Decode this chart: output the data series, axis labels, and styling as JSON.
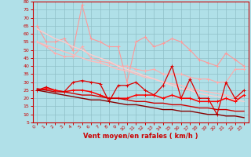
{
  "x": [
    0,
    1,
    2,
    3,
    4,
    5,
    6,
    7,
    8,
    9,
    10,
    11,
    12,
    13,
    14,
    15,
    16,
    17,
    18,
    19,
    20,
    21,
    22,
    23
  ],
  "series": [
    {
      "name": "max_gust_light",
      "color": "#ff9999",
      "linewidth": 0.8,
      "marker": "+",
      "markersize": 3,
      "markeredgewidth": 0.7,
      "y": [
        65,
        55,
        55,
        57,
        50,
        78,
        57,
        55,
        52,
        52,
        30,
        55,
        58,
        52,
        54,
        57,
        55,
        50,
        44,
        42,
        40,
        48,
        44,
        40
      ]
    },
    {
      "name": "mean_gust_light",
      "color": "#ffaaaa",
      "linewidth": 0.8,
      "marker": "+",
      "markersize": 3,
      "markeredgewidth": 0.7,
      "y": [
        55,
        52,
        48,
        46,
        46,
        52,
        45,
        43,
        42,
        40,
        40,
        38,
        37,
        38,
        35,
        35,
        35,
        33,
        32,
        32,
        30,
        30,
        38,
        38
      ]
    },
    {
      "name": "trend_light1",
      "color": "#ffbbbb",
      "linewidth": 1.0,
      "marker": null,
      "markersize": 0,
      "markeredgewidth": 0,
      "y": [
        55,
        53,
        51,
        49,
        47,
        45,
        43,
        42,
        40,
        38,
        37,
        35,
        33,
        32,
        30,
        29,
        28,
        26,
        25,
        24,
        23,
        22,
        21,
        21
      ]
    },
    {
      "name": "trend_light2",
      "color": "#ffcccc",
      "linewidth": 1.0,
      "marker": null,
      "markersize": 0,
      "markeredgewidth": 0,
      "y": [
        63,
        60,
        57,
        55,
        52,
        50,
        47,
        45,
        43,
        40,
        38,
        36,
        34,
        32,
        30,
        28,
        26,
        25,
        23,
        22,
        21,
        20,
        19,
        18
      ]
    },
    {
      "name": "wind_strong",
      "color": "#dd0000",
      "linewidth": 0.9,
      "marker": "+",
      "markersize": 3,
      "markeredgewidth": 0.7,
      "y": [
        25,
        27,
        25,
        24,
        30,
        31,
        30,
        29,
        18,
        28,
        28,
        30,
        25,
        22,
        28,
        40,
        20,
        32,
        20,
        20,
        10,
        30,
        20,
        25
      ]
    },
    {
      "name": "wind_mean",
      "color": "#ff0000",
      "linewidth": 1.1,
      "marker": "+",
      "markersize": 3,
      "markeredgewidth": 0.7,
      "y": [
        25,
        26,
        25,
        24,
        25,
        25,
        24,
        22,
        20,
        20,
        20,
        22,
        22,
        22,
        20,
        22,
        20,
        20,
        18,
        18,
        18,
        20,
        18,
        22
      ]
    },
    {
      "name": "trend_dark1",
      "color": "#cc0000",
      "linewidth": 1.0,
      "marker": null,
      "markersize": 0,
      "markeredgewidth": 0,
      "y": [
        26,
        25,
        24,
        24,
        23,
        22,
        22,
        21,
        20,
        20,
        19,
        18,
        18,
        17,
        17,
        16,
        16,
        15,
        14,
        14,
        13,
        13,
        12,
        12
      ]
    },
    {
      "name": "trend_dark2",
      "color": "#880000",
      "linewidth": 1.0,
      "marker": null,
      "markersize": 0,
      "markeredgewidth": 0,
      "y": [
        25,
        24,
        23,
        22,
        21,
        20,
        19,
        19,
        18,
        17,
        16,
        16,
        15,
        14,
        13,
        13,
        12,
        12,
        11,
        10,
        10,
        9,
        9,
        8
      ]
    }
  ],
  "xlim": [
    -0.5,
    23.5
  ],
  "ylim": [
    5,
    80
  ],
  "yticks": [
    5,
    10,
    15,
    20,
    25,
    30,
    35,
    40,
    45,
    50,
    55,
    60,
    65,
    70,
    75,
    80
  ],
  "xticks": [
    0,
    1,
    2,
    3,
    4,
    5,
    6,
    7,
    8,
    9,
    10,
    11,
    12,
    13,
    14,
    15,
    16,
    17,
    18,
    19,
    20,
    21,
    22,
    23
  ],
  "xlabel": "Vent moyen/en rafales ( km/h )",
  "background_color": "#b0e0e8",
  "grid_color": "#90c0c8",
  "tick_color": "#cc0000",
  "label_color": "#cc0000"
}
